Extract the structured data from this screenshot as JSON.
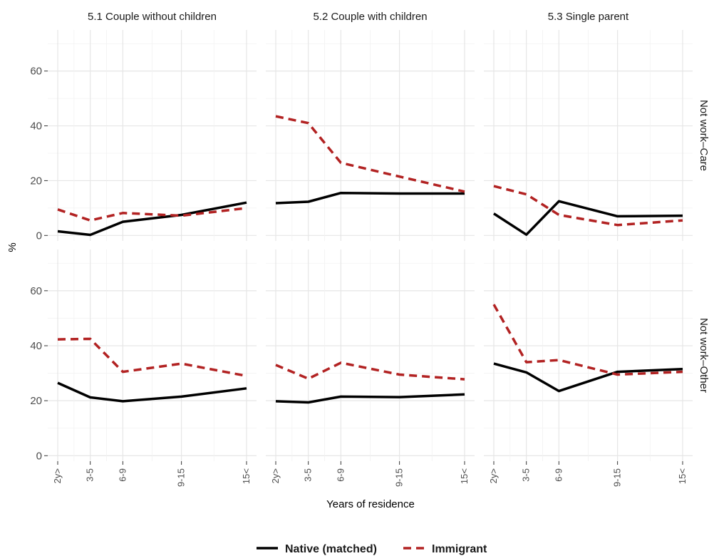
{
  "chart_data": {
    "type": "line",
    "xlabel": "Years of residence",
    "ylabel": "%",
    "ylim": [
      -2,
      75
    ],
    "yticks": [
      0,
      20,
      40,
      60
    ],
    "categories": [
      "2y>",
      "3-5",
      "6-9",
      "9-15",
      "15<"
    ],
    "x_positions": [
      1.5,
      4,
      6.5,
      11,
      16
    ],
    "xlim": [
      1.5,
      16
    ],
    "grid": true,
    "legend": "bottom",
    "columns": [
      "5.1 Couple without children",
      "5.2 Couple with children",
      "5.3 Single parent"
    ],
    "rows": [
      "Not work–Care",
      "Not work–Other"
    ],
    "series": [
      {
        "name": "Native (matched)",
        "color": "#000000",
        "dash": "solid"
      },
      {
        "name": "Immigrant",
        "color": "#b22222",
        "dash": "dashed"
      }
    ],
    "panels": [
      {
        "row": 0,
        "col": 0,
        "native": [
          1.5,
          0.2,
          5,
          7.5,
          12
        ],
        "immigrant": [
          9.5,
          5.5,
          8.2,
          7.2,
          10
        ]
      },
      {
        "row": 0,
        "col": 1,
        "native": [
          11.8,
          12.3,
          15.5,
          15.3,
          15.3
        ],
        "immigrant": [
          43.5,
          41,
          26.5,
          21.5,
          16
        ]
      },
      {
        "row": 0,
        "col": 2,
        "native": [
          8,
          0.3,
          12.5,
          7,
          7.2
        ],
        "immigrant": [
          18,
          15,
          7.5,
          3.8,
          5.5
        ]
      },
      {
        "row": 1,
        "col": 0,
        "native": [
          26.5,
          21.2,
          19.8,
          21.5,
          24.5
        ],
        "immigrant": [
          42.3,
          42.5,
          30.5,
          33.5,
          29
        ]
      },
      {
        "row": 1,
        "col": 1,
        "native": [
          19.8,
          19.4,
          21.5,
          21.3,
          22.3
        ],
        "immigrant": [
          33,
          28,
          33.8,
          29.5,
          27.8
        ]
      },
      {
        "row": 1,
        "col": 2,
        "native": [
          33.5,
          30.3,
          23.5,
          30.5,
          31.5
        ],
        "immigrant": [
          55,
          34,
          34.8,
          29.5,
          30.5
        ]
      }
    ]
  }
}
